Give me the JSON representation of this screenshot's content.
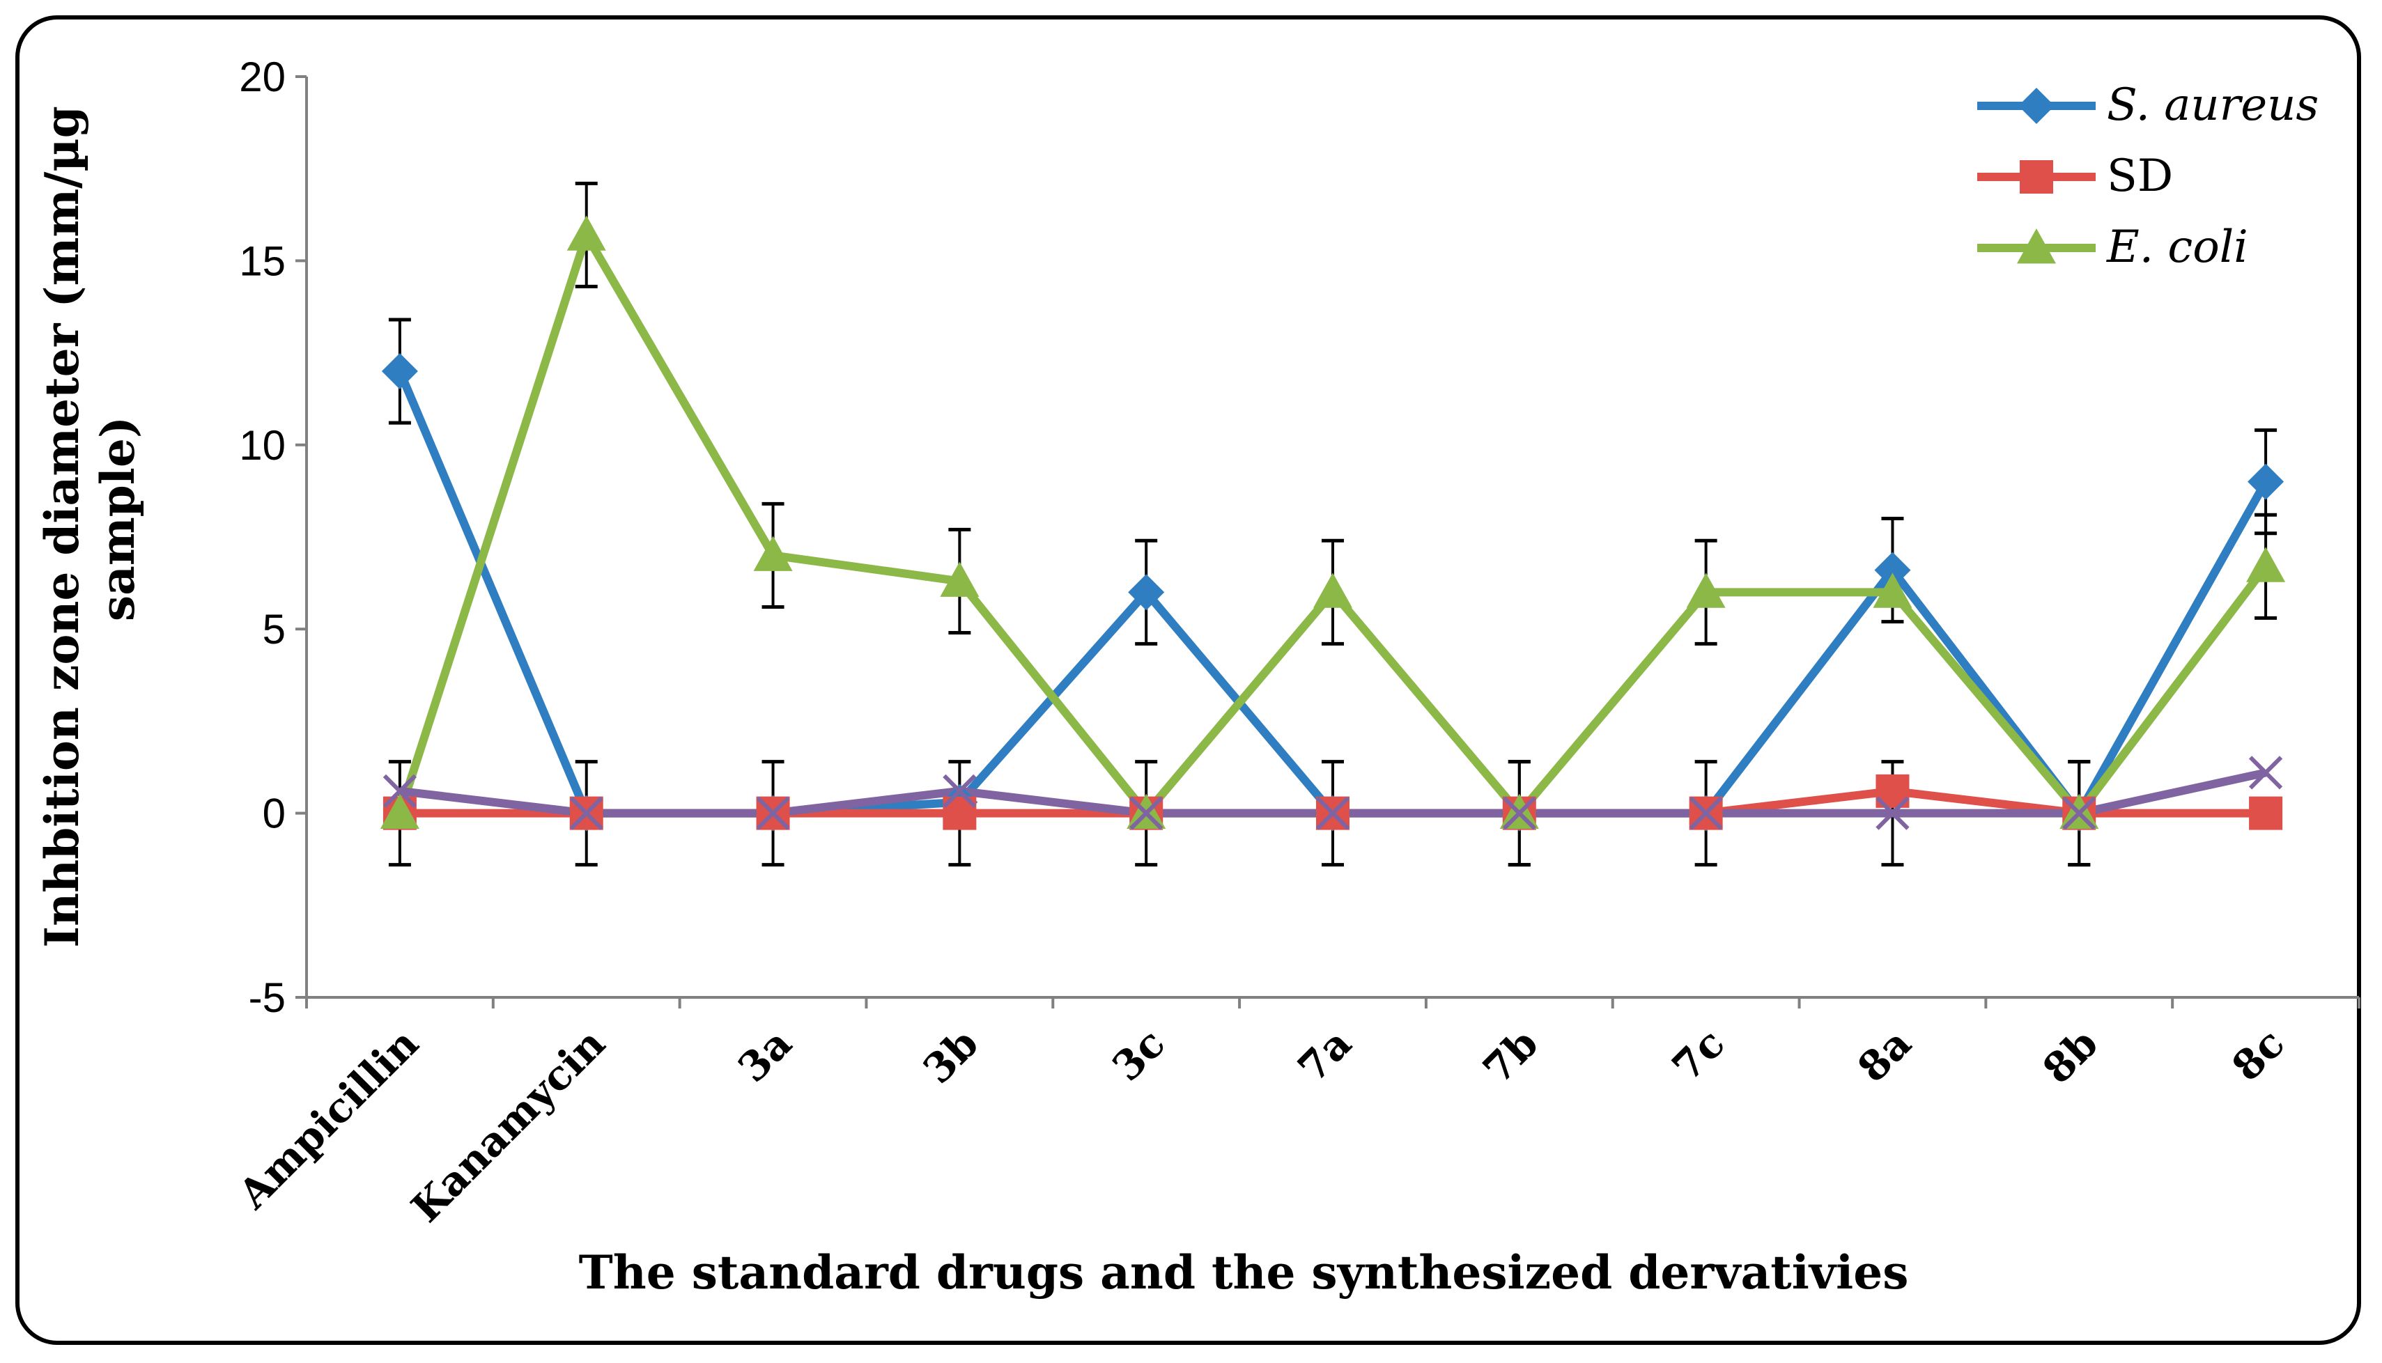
{
  "chart_data": {
    "type": "line",
    "categories": [
      "Ampicillin",
      "Kanamycin",
      "3a",
      "3b",
      "3c",
      "7a",
      "7b",
      "7c",
      "8a",
      "8b",
      "8c"
    ],
    "series": [
      {
        "name": "S. aureus",
        "italic": true,
        "color": "#2E7EC1",
        "marker": "diamond",
        "values": [
          12,
          0,
          0,
          0.3,
          6,
          0,
          0,
          0,
          6.6,
          0,
          9
        ]
      },
      {
        "name": "SD",
        "italic": false,
        "color": "#E0504A",
        "marker": "square",
        "values": [
          0,
          0,
          0,
          0,
          0,
          0,
          0,
          0,
          0.6,
          0,
          0
        ]
      },
      {
        "name": "E. coli",
        "italic": true,
        "color": "#8CB848",
        "marker": "triangle",
        "values": [
          0,
          15.7,
          7,
          6.3,
          0,
          6,
          0,
          6,
          6,
          0,
          6.7
        ]
      },
      {
        "name": "",
        "italic": false,
        "color": "#8064A2",
        "marker": "x",
        "in_legend": false,
        "values": [
          0.6,
          0,
          0,
          0.6,
          0,
          0,
          0,
          0,
          0,
          0,
          1.1
        ]
      }
    ],
    "error_bars": {
      "values": [
        12,
        15.7,
        7,
        6.3,
        6,
        6,
        0,
        6,
        6.6,
        0,
        9
      ],
      "plus_minus": 1.4,
      "lower_values": [
        0,
        0,
        0,
        0,
        0,
        0,
        0,
        0,
        0,
        0,
        6.7
      ]
    },
    "title": "",
    "xlabel": "The standard  drugs and the synthesized dervativies",
    "ylabel": "Inhbition zone diameter (mm/µg sample)",
    "ylabel_lines": [
      "Inhbition zone diameter (mm/µg",
      "sample)"
    ],
    "ylim": [
      -5,
      20
    ],
    "yticks": [
      -5,
      0,
      5,
      10,
      15,
      20
    ],
    "grid": false,
    "legend_position": "top-right"
  }
}
